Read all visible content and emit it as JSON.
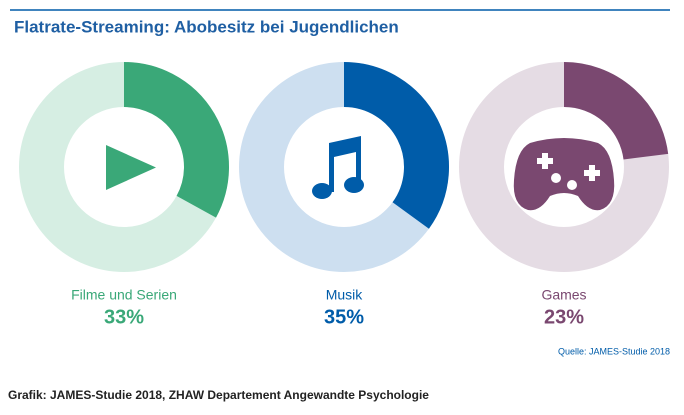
{
  "chart_data": {
    "type": "donut",
    "title": "Flatrate-Streaming: Abobesitz bei Jugendlichen",
    "categories": [
      "Filme und Serien",
      "Musik",
      "Games"
    ],
    "values": [
      33,
      35,
      23
    ],
    "value_labels": [
      "33%",
      "35%",
      "23%"
    ],
    "colors": [
      "#3aa878",
      "#005ca9",
      "#7a4870"
    ],
    "track_colors": [
      "#d6eee3",
      "#cddff0",
      "#e5dce4"
    ],
    "source": "Quelle: JAMES-Studie 2018",
    "credit": "Grafik: JAMES-Studie 2018, ZHAW Departement Angewandte Psychologie"
  }
}
